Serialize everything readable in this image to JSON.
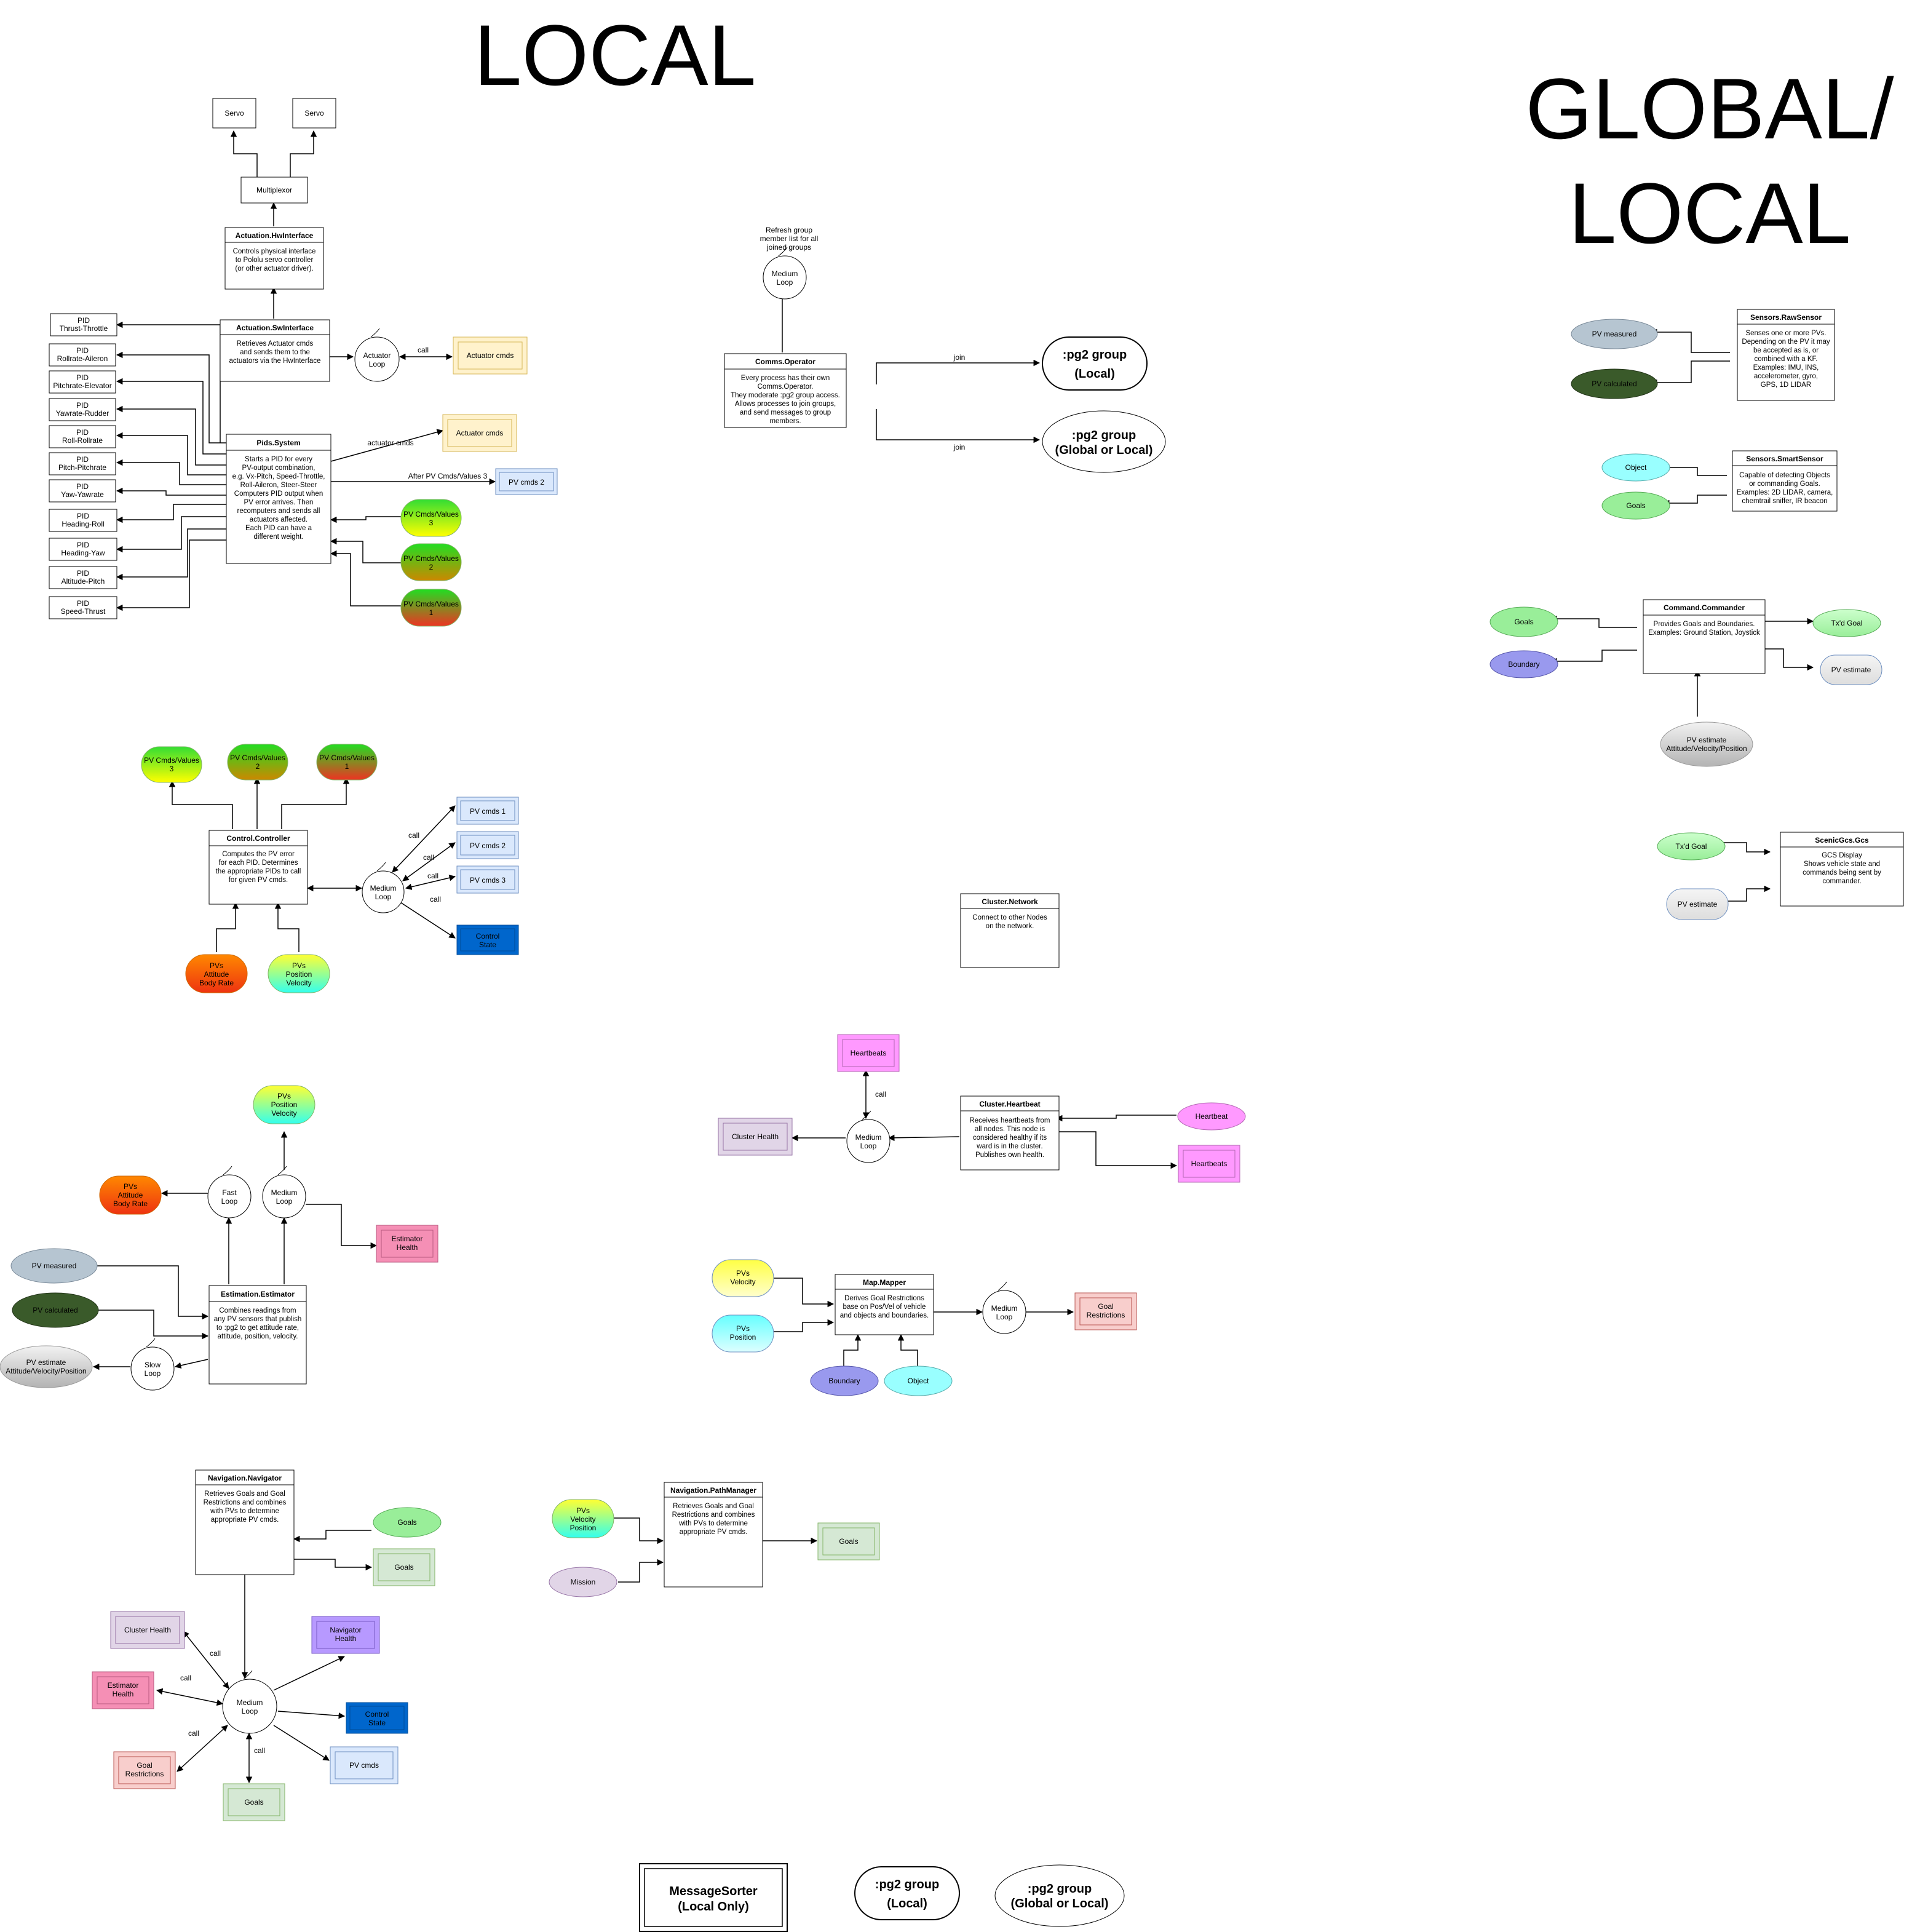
{
  "titles": {
    "local": "LOCAL",
    "global_line1": "GLOBAL/",
    "global_line2": "LOCAL"
  },
  "colors": {
    "blue_box": "#dae8fc",
    "yellow_box": "#fff2cc",
    "green_box": "#d5e8d4",
    "red_box": "#f8cecc",
    "purple_box": "#e1d5e7",
    "pink_box": "#ff99ff",
    "estimator_pink": "#f58fb5",
    "navigator_purple": "#b799ff",
    "control_state": "#0066cc",
    "pv_measured": "#b6c5d1",
    "pv_calculated": "#3a5a2a",
    "goals_green": "#99ee99",
    "object_cyan": "#99ffff",
    "boundary_blue": "#9999ee",
    "mission_purple": "#e1d5e7"
  },
  "nodes": {
    "servo1": "Servo",
    "servo2": "Servo",
    "multiplexor": "Multiplexor",
    "hw": {
      "title": "Actuation.HwInterface",
      "body": [
        "Controls physical interface",
        "to Pololu servo controller",
        "(or other actuator driver)."
      ]
    },
    "sw": {
      "title": "Actuation.SwInterface",
      "body": [
        "Retrieves Actuator cmds",
        "and sends them to the",
        "actuators via the HwInterface"
      ]
    },
    "actuator_loop": [
      "Actuator",
      "Loop"
    ],
    "actuator_cmds_1": "Actuator cmds",
    "actuator_cmds_2": "Actuator cmds",
    "pids": {
      "title": "Pids.System",
      "body": [
        "Starts a PID for every",
        "PV-output combination,",
        "e.g. Vx-Pitch, Speed-Throttle,",
        "Roll-Aileron, Steer-Steer",
        "Computers PID output when",
        "PV error arrives. Then",
        "recomputers and sends all",
        "actuators affected.",
        "Each PID can have a",
        "different weight."
      ]
    },
    "pid_list": [
      [
        "PID",
        "Thrust-Throttle"
      ],
      [
        "PID",
        "Rollrate-Aileron"
      ],
      [
        "PID",
        "Pitchrate-Elevator"
      ],
      [
        "PID",
        "Yawrate-Rudder"
      ],
      [
        "PID",
        "Roll-Rollrate"
      ],
      [
        "PID",
        "Pitch-Pitchrate"
      ],
      [
        "PID",
        "Yaw-Yawrate"
      ],
      [
        "PID",
        "Heading-Roll"
      ],
      [
        "PID",
        "Heading-Yaw"
      ],
      [
        "PID",
        "Altitude-Pitch"
      ],
      [
        "PID",
        "Speed-Thrust"
      ]
    ],
    "pv_cmds_2_top": "PV cmds 2",
    "pv_cmd_values": [
      [
        "PV Cmds/Values",
        "3"
      ],
      [
        "PV Cmds/Values",
        "2"
      ],
      [
        "PV Cmds/Values",
        "1"
      ]
    ],
    "comms": {
      "title": "Comms.Operator",
      "body": [
        "Every process has their own",
        "Comms.Operator.",
        "They moderate :pg2 group access.",
        "Allows processes to join groups,",
        "and send messages to group",
        "members."
      ]
    },
    "comms_loop": [
      "Medium",
      "Loop"
    ],
    "refresh_note": [
      "Refresh group",
      "member list for all",
      "joined groups"
    ],
    "pg2_local": [
      ":pg2 group",
      "(Local)"
    ],
    "pg2_global": [
      ":pg2 group",
      "(Global or Local)"
    ],
    "raw_sensor": {
      "title": "Sensors.RawSensor",
      "body": [
        "Senses one or more PVs.",
        "Depending on the PV it may",
        "be accepted as is, or",
        "combined with a KF.",
        "Examples: IMU, INS,",
        "accelerometer, gyro,",
        "GPS, 1D LIDAR"
      ]
    },
    "pv_measured": "PV measured",
    "pv_calculated": "PV calculated",
    "smart_sensor": {
      "title": "Sensors.SmartSensor",
      "body": [
        "Capable of detecting Objects",
        "or commanding Goals.",
        "Examples: 2D LIDAR, camera,",
        "chemtrail sniffer, IR beacon"
      ]
    },
    "object": "Object",
    "goals": "Goals",
    "commander": {
      "title": "Command.Commander",
      "body": [
        "Provides Goals and Boundaries.",
        "Examples: Ground Station, Joystick"
      ]
    },
    "boundary": "Boundary",
    "txd_goal": "Tx'd Goal",
    "pv_estimate": "PV estimate",
    "pv_estimate_long": [
      "PV estimate",
      "Attitude/Velocity/Position"
    ],
    "gcs": {
      "title": "ScenicGcs.Gcs",
      "body": [
        "GCS Display",
        "Shows vehicle state and",
        "commands being sent by",
        "commander."
      ]
    },
    "controller": {
      "title": "Control.Controller",
      "body": [
        "Computes the PV error",
        "for each PID. Determines",
        "the appropriate PIDs to call",
        "for given PV cmds."
      ]
    },
    "medium_loop": [
      "Medium",
      "Loop"
    ],
    "pv_cmds": [
      "PV cmds 1",
      "PV cmds 2",
      "PV cmds 3"
    ],
    "control_state": [
      "Control",
      "State"
    ],
    "pvs_attitude": [
      "PVs",
      "Attitude",
      "Body Rate"
    ],
    "pvs_position": [
      "PVs",
      "Position",
      "Velocity"
    ],
    "network": {
      "title": "Cluster.Network",
      "body": [
        "Connect to other Nodes",
        "on the network."
      ]
    },
    "heartbeats": "Heartbeats",
    "heartbeat": "Heartbeat",
    "cluster_health": "Cluster Health",
    "cluster_heartbeat": {
      "title": "Cluster.Heartbeat",
      "body": [
        "Receives heartbeats from",
        "all nodes. This node is",
        "considered healthy if its",
        "ward is in the cluster.",
        "Publishes own health."
      ]
    },
    "fast_loop": [
      "Fast",
      "Loop"
    ],
    "slow_loop": [
      "Slow",
      "Loop"
    ],
    "estimator_health": [
      "Estimator",
      "Health"
    ],
    "estimator": {
      "title": "Estimation.Estimator",
      "body": [
        "Combines readings from",
        "any PV sensors that publish",
        "to :pg2 to get attitude rate,",
        "attitude, position, velocity."
      ]
    },
    "pvs_velocity": [
      "PVs",
      "Velocity"
    ],
    "pvs_position_only": [
      "PVs",
      "Position"
    ],
    "mapper": {
      "title": "Map.Mapper",
      "body": [
        "Derives Goal Restrictions",
        "base on Pos/Vel of vehicle",
        "and objects and boundaries."
      ]
    },
    "goal_restrictions": [
      "Goal",
      "Restrictions"
    ],
    "navigator": {
      "title": "Navigation.Navigator",
      "body": [
        "Retrieves Goals and Goal",
        "Restrictions and combines",
        "with PVs to determine",
        "appropriate PV cmds."
      ]
    },
    "navigator_health": [
      "Navigator",
      "Health"
    ],
    "pv_cmds_plain": "PV cmds",
    "pathmanager": {
      "title": "Navigation.PathManager",
      "body": [
        "Retrieves Goals and Goal",
        "Restrictions and combines",
        "with PVs to determine",
        "appropriate PV cmds."
      ]
    },
    "pvs_vel_pos": [
      "PVs",
      "Velocity",
      "Position"
    ],
    "mission": "Mission"
  },
  "edge_labels": {
    "call": "call",
    "join": "join",
    "actuator_cmds": "actuator cmds",
    "after_pv": "After PV Cmds/Values 3"
  },
  "legend": {
    "message_sorter": [
      "MessageSorter",
      "(Local Only)"
    ],
    "pg2_local": [
      ":pg2 group",
      "(Local)"
    ],
    "pg2_global": [
      ":pg2 group",
      "(Global or Local)"
    ]
  }
}
